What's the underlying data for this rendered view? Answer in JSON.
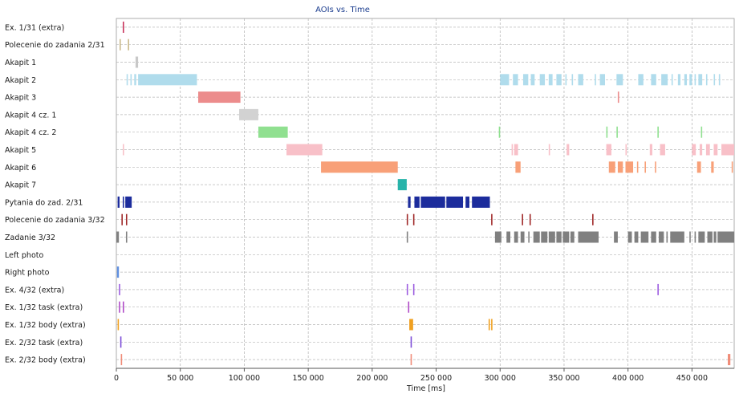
{
  "chart_data": {
    "type": "timeline",
    "title": "AOIs vs. Time",
    "xlabel": "Time [ms]",
    "xlim": [
      0,
      483000
    ],
    "xticks": [
      0,
      50000,
      100000,
      150000,
      200000,
      250000,
      300000,
      350000,
      400000,
      450000
    ],
    "xtick_labels": [
      "0",
      "50 000",
      "100 000",
      "150 000",
      "200 000",
      "250 000",
      "300 000",
      "350 000",
      "400 000",
      "450 000"
    ],
    "grid": true,
    "rows": [
      {
        "label": "Ex. 1/31 (extra)",
        "color": "#c8325a",
        "segments": [
          [
            5000,
            6000
          ]
        ]
      },
      {
        "label": "Polecenie do zadania 2/31",
        "color": "#c9b98a",
        "segments": [
          [
            2500,
            3500
          ],
          [
            9000,
            10000
          ]
        ]
      },
      {
        "label": "Akapit 1",
        "color": "#c8c8c8",
        "segments": [
          [
            15000,
            17000
          ]
        ]
      },
      {
        "label": "Akapit 2",
        "color": "#b0dcec",
        "segments": [
          [
            8000,
            9000
          ],
          [
            11000,
            12000
          ],
          [
            14000,
            15500
          ],
          [
            17000,
            63000
          ],
          [
            300000,
            307000
          ],
          [
            310000,
            314000
          ],
          [
            318000,
            322000
          ],
          [
            324000,
            327000
          ],
          [
            331000,
            335000
          ],
          [
            338000,
            341000
          ],
          [
            344000,
            348000
          ],
          [
            351000,
            352000
          ],
          [
            356000,
            357000
          ],
          [
            361000,
            365000
          ],
          [
            374000,
            375000
          ],
          [
            378000,
            382000
          ],
          [
            391000,
            396000
          ],
          [
            408000,
            412000
          ],
          [
            418000,
            422000
          ],
          [
            426000,
            431000
          ],
          [
            434000,
            435000
          ],
          [
            439000,
            441000
          ],
          [
            444000,
            446000
          ],
          [
            448000,
            450000
          ],
          [
            452000,
            453000
          ],
          [
            455000,
            458000
          ],
          [
            461000,
            462000
          ],
          [
            467000,
            468000
          ],
          [
            471000,
            472000
          ]
        ]
      },
      {
        "label": "Akapit 3",
        "color": "#ec8c8c",
        "segments": [
          [
            64000,
            97000
          ],
          [
            392000,
            393000
          ]
        ]
      },
      {
        "label": "Akapit 4 cz. 1",
        "color": "#d2d2d2",
        "segments": [
          [
            96000,
            111000
          ]
        ]
      },
      {
        "label": "Akapit 4 cz. 2",
        "color": "#90e090",
        "segments": [
          [
            111000,
            134000
          ],
          [
            299000,
            300000
          ],
          [
            383000,
            384000
          ],
          [
            391000,
            392000
          ],
          [
            423000,
            424000
          ],
          [
            457000,
            458000
          ]
        ]
      },
      {
        "label": "Akapit 5",
        "color": "#f8c0c8",
        "segments": [
          [
            5000,
            6000
          ],
          [
            133000,
            161000
          ],
          [
            309000,
            310000
          ],
          [
            311000,
            314000
          ],
          [
            338000,
            339000
          ],
          [
            352000,
            354000
          ],
          [
            383000,
            387000
          ],
          [
            398000,
            399000
          ],
          [
            417000,
            419000
          ],
          [
            425000,
            429000
          ],
          [
            450000,
            453000
          ],
          [
            456000,
            458000
          ],
          [
            461000,
            464000
          ],
          [
            467000,
            470000
          ],
          [
            473000,
            483000
          ]
        ]
      },
      {
        "label": "Akapit 6",
        "color": "#f8a078",
        "segments": [
          [
            160000,
            220000
          ],
          [
            312000,
            316000
          ],
          [
            385000,
            390000
          ],
          [
            392000,
            396000
          ],
          [
            398000,
            404000
          ],
          [
            407000,
            408000
          ],
          [
            413000,
            414000
          ],
          [
            421000,
            422000
          ],
          [
            454000,
            457000
          ],
          [
            465000,
            467000
          ],
          [
            481000,
            482000
          ]
        ]
      },
      {
        "label": "Akapit 7",
        "color": "#28b4aa",
        "segments": [
          [
            220000,
            227000
          ]
        ]
      },
      {
        "label": "Pytania do zad. 2/31",
        "color": "#1c2c9c",
        "segments": [
          [
            1000,
            2500
          ],
          [
            5000,
            6000
          ],
          [
            7000,
            12000
          ],
          [
            228000,
            230000
          ],
          [
            233000,
            237000
          ],
          [
            238000,
            257000
          ],
          [
            258000,
            271000
          ],
          [
            273000,
            276000
          ],
          [
            278000,
            292000
          ]
        ]
      },
      {
        "label": "Polecenie do zadania 3/32",
        "color": "#a02828",
        "segments": [
          [
            4000,
            5000
          ],
          [
            7500,
            8500
          ],
          [
            227000,
            228000
          ],
          [
            232000,
            233000
          ],
          [
            293000,
            294000
          ],
          [
            317000,
            318000
          ],
          [
            323000,
            324000
          ],
          [
            372000,
            373000
          ]
        ]
      },
      {
        "label": "Zadanie 3/32",
        "color": "#808080",
        "segments": [
          [
            0,
            2000
          ],
          [
            7500,
            8500
          ],
          [
            227000,
            228000
          ],
          [
            296000,
            301000
          ],
          [
            305000,
            308000
          ],
          [
            311000,
            314000
          ],
          [
            316000,
            319000
          ],
          [
            322000,
            323000
          ],
          [
            326000,
            331000
          ],
          [
            332000,
            337000
          ],
          [
            338000,
            343000
          ],
          [
            344000,
            348000
          ],
          [
            349000,
            354000
          ],
          [
            355000,
            358000
          ],
          [
            361000,
            377000
          ],
          [
            389000,
            392000
          ],
          [
            400000,
            403000
          ],
          [
            405000,
            408000
          ],
          [
            410000,
            416000
          ],
          [
            418000,
            422000
          ],
          [
            424000,
            428000
          ],
          [
            430000,
            431000
          ],
          [
            433000,
            444000
          ],
          [
            448000,
            449000
          ],
          [
            452000,
            453000
          ],
          [
            455000,
            460000
          ],
          [
            462000,
            466000
          ],
          [
            467000,
            469000
          ],
          [
            470000,
            483000
          ]
        ]
      },
      {
        "label": "Left photo",
        "color": "#6080c0",
        "segments": []
      },
      {
        "label": "Right photo",
        "color": "#6090e0",
        "segments": [
          [
            500,
            2000
          ]
        ]
      },
      {
        "label": "Ex. 4/32 (extra)",
        "color": "#9c5ce0",
        "segments": [
          [
            2000,
            3000
          ],
          [
            227000,
            228000
          ],
          [
            232000,
            233000
          ],
          [
            423000,
            424000
          ]
        ]
      },
      {
        "label": "Ex. 1/32 task (extra)",
        "color": "#b04ac8",
        "segments": [
          [
            2000,
            3000
          ],
          [
            5000,
            6000
          ],
          [
            228000,
            229000
          ]
        ]
      },
      {
        "label": "Ex. 1/32 body (extra)",
        "color": "#f0a020",
        "segments": [
          [
            1000,
            2000
          ],
          [
            229000,
            232000
          ],
          [
            291000,
            292000
          ],
          [
            293000,
            294000
          ]
        ]
      },
      {
        "label": "Ex. 2/32 task (extra)",
        "color": "#7c4cd8",
        "segments": [
          [
            3000,
            4000
          ],
          [
            230000,
            231000
          ]
        ]
      },
      {
        "label": "Ex. 2/32 body (extra)",
        "color": "#f08c78",
        "segments": [
          [
            3500,
            4500
          ],
          [
            230000,
            231000
          ],
          [
            478000,
            480000
          ]
        ]
      }
    ]
  }
}
